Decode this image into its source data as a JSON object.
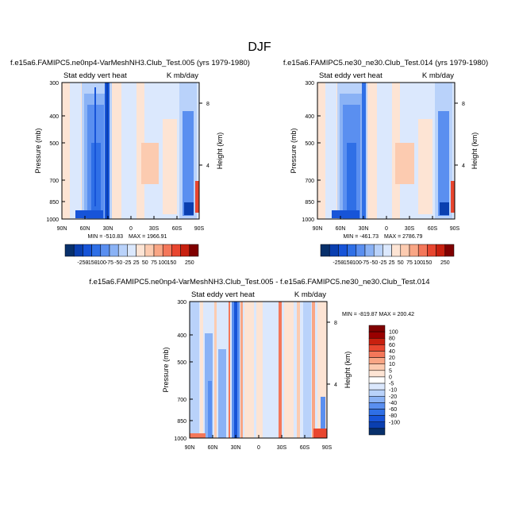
{
  "page_title": "DJF",
  "palettes": {
    "top": [
      "#08306b",
      "#0a3fb0",
      "#1754d8",
      "#2f6fe6",
      "#5a8ff0",
      "#8ab2f5",
      "#b9d2fa",
      "#dbe8fd",
      "#fde4d4",
      "#fccbb0",
      "#f9a685",
      "#f4775a",
      "#e8462f",
      "#c8200f",
      "#800000"
    ],
    "diff": [
      "#08306b",
      "#0a3fb0",
      "#1754d8",
      "#2f6fe6",
      "#5a8ff0",
      "#8ab2f5",
      "#b9d2fa",
      "#dbe8fd",
      "#ffffff",
      "#fde4d4",
      "#fccbb0",
      "#f9a685",
      "#f4775a",
      "#e8462f",
      "#c8200f",
      "#990000",
      "#800000"
    ]
  },
  "chart_data": [
    {
      "type": "heatmap",
      "title": "f.e15a6.FAMIPC5.ne0np4-VarMeshNH3.Club_Test.005 (yrs 1979-1980)",
      "left_subtitle": "Stat eddy vert heat",
      "right_subtitle": "K mb/day",
      "xlabel": "",
      "ylabel": "Pressure (mb)",
      "y2label": "Height (km)",
      "x_ticks": [
        "90N",
        "60N",
        "30N",
        "0",
        "30S",
        "60S",
        "90S"
      ],
      "y_ticks": [
        "300",
        "400",
        "500",
        "700",
        "850",
        "1000"
      ],
      "y2_ticks": [
        "8",
        "4"
      ],
      "ylim": [
        300,
        1000
      ],
      "min_label": "MIN = -510.83",
      "max_label": "MAX = 1966.91",
      "stats": {
        "min": -510.83,
        "max": 1966.91
      },
      "colorbar_labels": [
        "-250",
        "-150",
        "-100",
        "-75",
        "-50",
        "-25",
        "25",
        "50",
        "75",
        "100",
        "150",
        "250"
      ],
      "colorbar_levels": [
        -250,
        -200,
        -150,
        -100,
        -75,
        -50,
        -25,
        0,
        25,
        50,
        75,
        100,
        150,
        200,
        250
      ]
    },
    {
      "type": "heatmap",
      "title": "f.e15a6.FAMIPC5.ne30_ne30.Club_Test.014 (yrs 1979-1980)",
      "left_subtitle": "Stat eddy vert heat",
      "right_subtitle": "K mb/day",
      "xlabel": "",
      "ylabel": "Pressure (mb)",
      "y2label": "Height (km)",
      "x_ticks": [
        "90N",
        "60N",
        "30N",
        "0",
        "30S",
        "60S",
        "90S"
      ],
      "y_ticks": [
        "300",
        "400",
        "500",
        "700",
        "850",
        "1000"
      ],
      "y2_ticks": [
        "8",
        "4"
      ],
      "ylim": [
        300,
        1000
      ],
      "min_label": "MIN = -461.73",
      "max_label": "MAX = 2786.79",
      "stats": {
        "min": -461.73,
        "max": 2786.79
      },
      "colorbar_labels": [
        "-250",
        "-150",
        "-100",
        "-75",
        "-50",
        "-25",
        "25",
        "50",
        "75",
        "100",
        "150",
        "250"
      ],
      "colorbar_levels": [
        -250,
        -200,
        -150,
        -100,
        -75,
        -50,
        -25,
        0,
        25,
        50,
        75,
        100,
        150,
        200,
        250
      ]
    },
    {
      "type": "heatmap",
      "title": "f.e15a6.FAMIPC5.ne0np4-VarMeshNH3.Club_Test.005 - f.e15a6.FAMIPC5.ne30_ne30.Club_Test.014",
      "left_subtitle": "Stat eddy vert heat",
      "right_subtitle": "K mb/day",
      "xlabel": "",
      "ylabel": "Pressure (mb)",
      "y2label": "Height (km)",
      "x_ticks": [
        "90N",
        "60N",
        "30N",
        "0",
        "30S",
        "60S",
        "90S"
      ],
      "y_ticks": [
        "300",
        "400",
        "500",
        "700",
        "850",
        "1000"
      ],
      "y2_ticks": [
        "8",
        "4"
      ],
      "ylim": [
        300,
        1000
      ],
      "minmax_label": "MIN = -819.87  MAX = 200.42",
      "stats": {
        "min": -819.87,
        "max": 200.42
      },
      "colorbar_labels": [
        "100",
        "80",
        "60",
        "40",
        "20",
        "10",
        "5",
        "0",
        "-5",
        "-10",
        "-20",
        "-40",
        "-60",
        "-80",
        "-100"
      ],
      "colorbar_levels": [
        -100,
        -80,
        -60,
        -40,
        -20,
        -10,
        -5,
        0,
        5,
        10,
        20,
        40,
        60,
        80,
        100
      ]
    }
  ]
}
